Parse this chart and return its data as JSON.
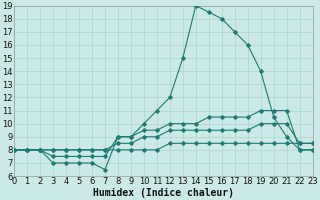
{
  "xlabel": "Humidex (Indice chaleur)",
  "xlim": [
    0,
    23
  ],
  "ylim": [
    6,
    19
  ],
  "xticks": [
    0,
    1,
    2,
    3,
    4,
    5,
    6,
    7,
    8,
    9,
    10,
    11,
    12,
    13,
    14,
    15,
    16,
    17,
    18,
    19,
    20,
    21,
    22,
    23
  ],
  "yticks": [
    6,
    7,
    8,
    9,
    10,
    11,
    12,
    13,
    14,
    15,
    16,
    17,
    18,
    19
  ],
  "bg_color": "#cbe9e6",
  "grid_color": "#b0d8d4",
  "line_color": "#1e7a72",
  "series": [
    {
      "x": [
        0,
        1,
        2,
        3,
        4,
        5,
        6,
        7,
        8,
        9,
        10,
        11,
        12,
        13,
        14,
        15,
        16,
        17,
        18,
        19,
        20,
        21,
        22,
        23
      ],
      "y": [
        8,
        8,
        8,
        7,
        7,
        7,
        7,
        6.5,
        9,
        9,
        10,
        11,
        12,
        15,
        19,
        18.5,
        18,
        17,
        16,
        14,
        10.5,
        9,
        8,
        8
      ]
    },
    {
      "x": [
        0,
        1,
        2,
        3,
        4,
        5,
        6,
        7,
        8,
        9,
        10,
        11,
        12,
        13,
        14,
        15,
        16,
        17,
        18,
        19,
        20,
        21,
        22,
        23
      ],
      "y": [
        8,
        8,
        8,
        7.5,
        7.5,
        7.5,
        7.5,
        7.5,
        9,
        9,
        9.5,
        9.5,
        10,
        10,
        10,
        10.5,
        10.5,
        10.5,
        10.5,
        11,
        11,
        11,
        8,
        8
      ]
    },
    {
      "x": [
        0,
        1,
        2,
        3,
        4,
        5,
        6,
        7,
        8,
        9,
        10,
        11,
        12,
        13,
        14,
        15,
        16,
        17,
        18,
        19,
        20,
        21,
        22,
        23
      ],
      "y": [
        8,
        8,
        8,
        8,
        8,
        8,
        8,
        8,
        8.5,
        8.5,
        9,
        9,
        9.5,
        9.5,
        9.5,
        9.5,
        9.5,
        9.5,
        9.5,
        10,
        10,
        10,
        8.5,
        8.5
      ]
    },
    {
      "x": [
        0,
        1,
        2,
        3,
        4,
        5,
        6,
        7,
        8,
        9,
        10,
        11,
        12,
        13,
        14,
        15,
        16,
        17,
        18,
        19,
        20,
        21,
        22,
        23
      ],
      "y": [
        8,
        8,
        8,
        8,
        8,
        8,
        8,
        8,
        8,
        8,
        8,
        8,
        8.5,
        8.5,
        8.5,
        8.5,
        8.5,
        8.5,
        8.5,
        8.5,
        8.5,
        8.5,
        8.5,
        8.5
      ]
    }
  ],
  "font_size": 6,
  "xlabel_fontsize": 7
}
